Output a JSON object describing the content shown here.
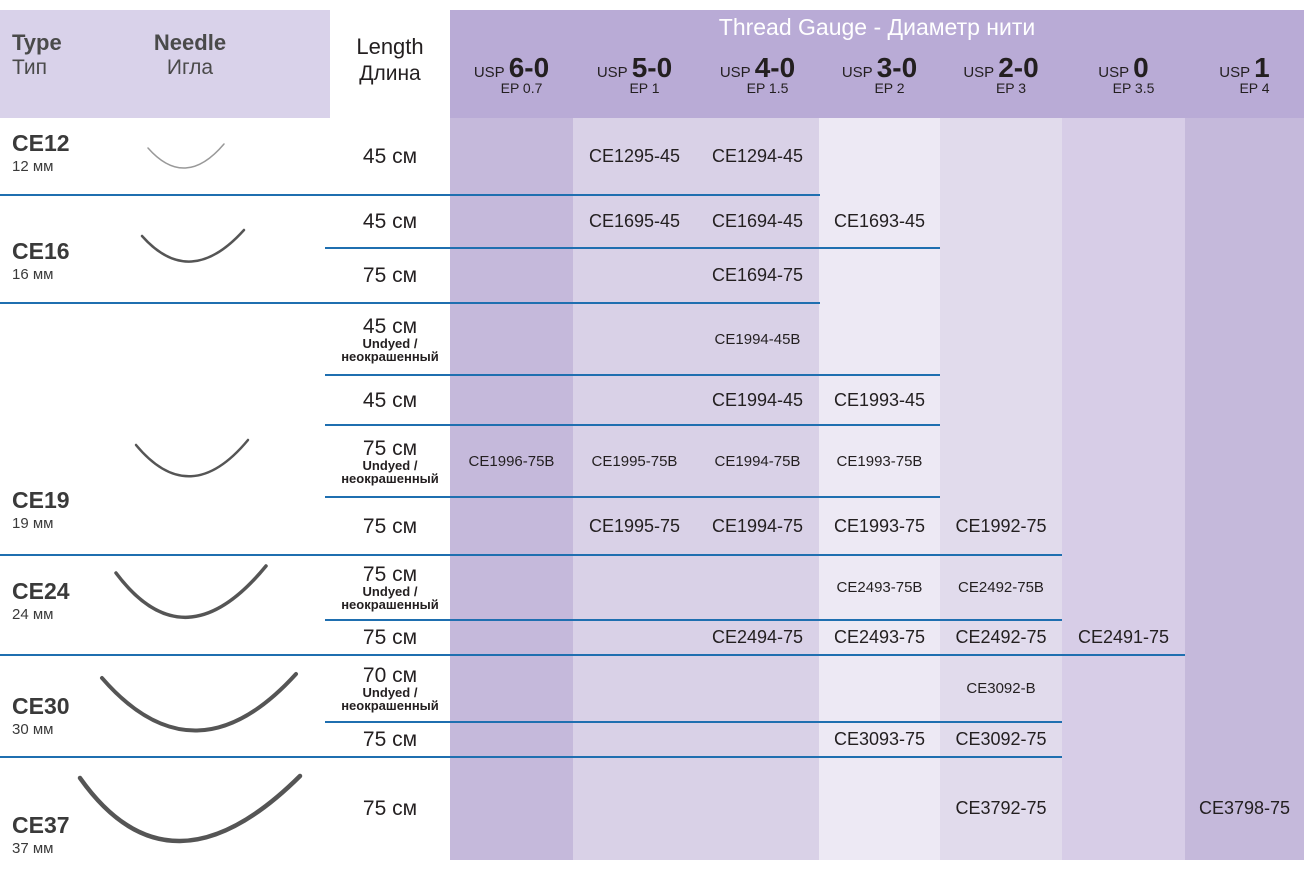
{
  "header": {
    "type": {
      "en": "Type",
      "ru": "Тип"
    },
    "needle": {
      "en": "Needle",
      "ru": "Игла"
    },
    "length": {
      "en": "Length",
      "ru": "Длина"
    },
    "gauge_title": "Thread Gauge - Диаметр нити",
    "gauges": [
      {
        "usp": "USP",
        "size": "6-0",
        "ep": "EP 0.7"
      },
      {
        "usp": "USP",
        "size": "5-0",
        "ep": "EP 1"
      },
      {
        "usp": "USP",
        "size": "4-0",
        "ep": "EP 1.5"
      },
      {
        "usp": "USP",
        "size": "3-0",
        "ep": "EP 2"
      },
      {
        "usp": "USP",
        "size": "2-0",
        "ep": "EP 3"
      },
      {
        "usp": "USP",
        "size": "0",
        "ep": "EP 3.5"
      },
      {
        "usp": "USP",
        "size": "1",
        "ep": "EP 4"
      }
    ]
  },
  "groups": [
    {
      "code": "CE12",
      "size": "12 мм"
    },
    {
      "code": "CE16",
      "size": "16 мм"
    },
    {
      "code": "CE19",
      "size": "19 мм"
    },
    {
      "code": "CE24",
      "size": "24 мм"
    },
    {
      "code": "CE30",
      "size": "30 мм"
    },
    {
      "code": "CE37",
      "size": "37 мм"
    }
  ],
  "rows": [
    {
      "length": "45 см",
      "cells": [
        null,
        "CE1295-45",
        "CE1294-45",
        null,
        null,
        null,
        null
      ]
    },
    {
      "length": "45 см",
      "cells": [
        null,
        "CE1695-45",
        "CE1694-45",
        "CE1693-45",
        null,
        null,
        null
      ]
    },
    {
      "length": "75 см",
      "cells": [
        null,
        null,
        "CE1694-75",
        null,
        null,
        null,
        null
      ]
    },
    {
      "length": "45 см",
      "note": [
        "Undyed /",
        "неокрашенный"
      ],
      "cells": [
        null,
        null,
        "CE1994-45B",
        null,
        null,
        null,
        null
      ]
    },
    {
      "length": "45 см",
      "cells": [
        null,
        null,
        "CE1994-45",
        "CE1993-45",
        null,
        null,
        null
      ]
    },
    {
      "length": "75 см",
      "note": [
        "Undyed /",
        "неокрашенный"
      ],
      "cells": [
        "CE1996-75B",
        "CE1995-75B",
        "CE1994-75B",
        "CE1993-75B",
        null,
        null,
        null
      ]
    },
    {
      "length": "75 см",
      "cells": [
        null,
        "CE1995-75",
        "CE1994-75",
        "CE1993-75",
        "CE1992-75",
        null,
        null
      ]
    },
    {
      "length": "75 см",
      "note": [
        "Undyed /",
        "неокрашенный"
      ],
      "cells": [
        null,
        null,
        null,
        "CE2493-75B",
        "CE2492-75B",
        null,
        null
      ]
    },
    {
      "length": "75 см",
      "cells": [
        null,
        null,
        "CE2494-75",
        "CE2493-75",
        "CE2492-75",
        "CE2491-75",
        null
      ]
    },
    {
      "length": "70 см",
      "note": [
        "Undyed /",
        "неокрашенный"
      ],
      "cells": [
        null,
        null,
        null,
        null,
        "CE3092-B",
        null,
        null
      ]
    },
    {
      "length": "75 см",
      "cells": [
        null,
        null,
        null,
        "CE3093-75",
        "CE3092-75",
        null,
        null
      ]
    },
    {
      "length": "75 см",
      "cells": [
        null,
        null,
        null,
        null,
        "CE3792-75",
        null,
        "CE3798-75"
      ]
    }
  ]
}
